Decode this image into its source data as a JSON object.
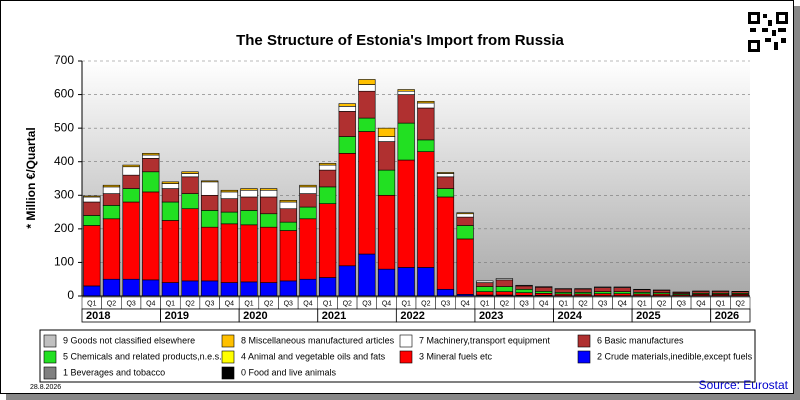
{
  "chart_data": {
    "type": "stacked-bar",
    "title": "The Structure of Estonia's Import from Russia",
    "y_label": "* Million €/Quartal",
    "categories": [
      "Q1",
      "Q2",
      "Q3",
      "Q4",
      "Q1",
      "Q2",
      "Q3",
      "Q4",
      "Q1",
      "Q2",
      "Q3",
      "Q4",
      "Q1",
      "Q2",
      "Q3",
      "Q4",
      "Q1",
      "Q2",
      "Q3",
      "Q4",
      "Q1",
      "Q2",
      "Q3",
      "Q4",
      "Q1",
      "Q2",
      "Q3",
      "Q4",
      "Q1",
      "Q2",
      "Q3",
      "Q4",
      "Q1",
      "Q2"
    ],
    "years": [
      "2018",
      "2019",
      "2020",
      "2021",
      "2022",
      "2023",
      "2024",
      "2025",
      "2026"
    ],
    "ylim": [
      0,
      700
    ],
    "yticks": [
      0,
      100,
      200,
      300,
      400,
      500,
      600,
      700
    ],
    "grid": true,
    "series": [
      {
        "name": "9 Goods not classified elsewhere",
        "color": "#c0c0c0",
        "values": [
          0,
          0,
          0,
          0,
          0,
          0,
          0,
          0,
          0,
          0,
          0,
          0,
          0,
          0,
          0,
          0,
          0,
          0,
          0,
          0,
          0,
          0,
          0,
          0,
          0,
          0,
          0,
          0,
          0,
          0,
          0,
          0,
          0,
          0
        ]
      },
      {
        "name": "8 Miscellaneous manufactured articles",
        "color": "#ffc000",
        "values": [
          3,
          5,
          5,
          5,
          5,
          5,
          3,
          5,
          5,
          5,
          5,
          5,
          5,
          8,
          15,
          25,
          5,
          5,
          3,
          3,
          0,
          0,
          0,
          0,
          0,
          0,
          0,
          0,
          0,
          0,
          0,
          0,
          0,
          0
        ]
      },
      {
        "name": "7 Machinery,transport equipment",
        "color": "#ffffff",
        "values": [
          15,
          20,
          25,
          10,
          15,
          10,
          40,
          20,
          20,
          20,
          20,
          20,
          15,
          15,
          20,
          15,
          10,
          15,
          10,
          10,
          5,
          4,
          2,
          2,
          1,
          1,
          2,
          2,
          1,
          1,
          1,
          1,
          1,
          1
        ]
      },
      {
        "name": "6 Basic manufactures",
        "color": "#b03030",
        "values": [
          40,
          35,
          40,
          40,
          40,
          50,
          45,
          40,
          40,
          50,
          40,
          40,
          50,
          75,
          80,
          85,
          85,
          95,
          35,
          25,
          12,
          20,
          10,
          12,
          10,
          10,
          12,
          12,
          8,
          7,
          4,
          6,
          6,
          5
        ]
      },
      {
        "name": "5 Chemicals and related products,n.e.s.",
        "color": "#22e022",
        "values": [
          30,
          40,
          40,
          60,
          55,
          45,
          50,
          35,
          43,
          40,
          25,
          35,
          50,
          50,
          40,
          75,
          110,
          35,
          25,
          40,
          15,
          15,
          10,
          6,
          5,
          5,
          6,
          6,
          5,
          4,
          3,
          3,
          3,
          3
        ]
      },
      {
        "name": "4 Animal and vegetable oils and fats",
        "color": "#ffff00",
        "values": [
          0,
          0,
          0,
          0,
          0,
          0,
          0,
          0,
          0,
          0,
          0,
          0,
          0,
          0,
          0,
          0,
          0,
          0,
          0,
          0,
          0,
          0,
          0,
          0,
          0,
          0,
          0,
          0,
          0,
          0,
          0,
          0,
          0,
          0
        ]
      },
      {
        "name": "3 Mineral fuels etc",
        "color": "#ff0000",
        "values": [
          180,
          180,
          230,
          262,
          185,
          215,
          160,
          175,
          170,
          165,
          150,
          180,
          220,
          335,
          365,
          220,
          320,
          345,
          275,
          165,
          10,
          10,
          8,
          6,
          5,
          5,
          6,
          6,
          5,
          5,
          3,
          4,
          4,
          4
        ]
      },
      {
        "name": "2 Crude materials,inedible,except fuels",
        "color": "#0000ff",
        "values": [
          30,
          50,
          50,
          48,
          40,
          45,
          45,
          40,
          42,
          40,
          45,
          50,
          55,
          90,
          125,
          80,
          85,
          85,
          20,
          5,
          3,
          3,
          2,
          2,
          1,
          1,
          1,
          1,
          1,
          1,
          1,
          1,
          1,
          1
        ]
      },
      {
        "name": "1 Beverages and tobacco",
        "color": "#808080",
        "values": [
          0,
          0,
          0,
          0,
          0,
          0,
          0,
          0,
          0,
          0,
          0,
          0,
          0,
          0,
          0,
          0,
          0,
          0,
          0,
          0,
          0,
          0,
          0,
          0,
          0,
          0,
          0,
          0,
          0,
          0,
          0,
          0,
          0,
          0
        ]
      },
      {
        "name": "0 Food and live animals",
        "color": "#000000",
        "values": [
          0,
          0,
          0,
          0,
          0,
          0,
          0,
          0,
          0,
          0,
          0,
          0,
          0,
          0,
          0,
          0,
          0,
          0,
          0,
          0,
          0,
          0,
          0,
          0,
          0,
          0,
          0,
          0,
          0,
          0,
          0,
          0,
          0,
          0
        ]
      }
    ],
    "date": "28.8.2026",
    "source": "Source: Eurostat"
  }
}
